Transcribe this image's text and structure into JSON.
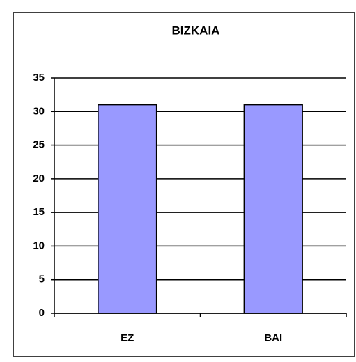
{
  "chart_data": {
    "type": "bar",
    "title": "BIZKAIA",
    "categories": [
      "EZ",
      "BAI"
    ],
    "values": [
      31,
      31
    ],
    "color": "#9999ff",
    "ylim": [
      0,
      35
    ],
    "yticks": [
      0,
      5,
      10,
      15,
      20,
      25,
      30,
      35
    ],
    "grid": true
  }
}
